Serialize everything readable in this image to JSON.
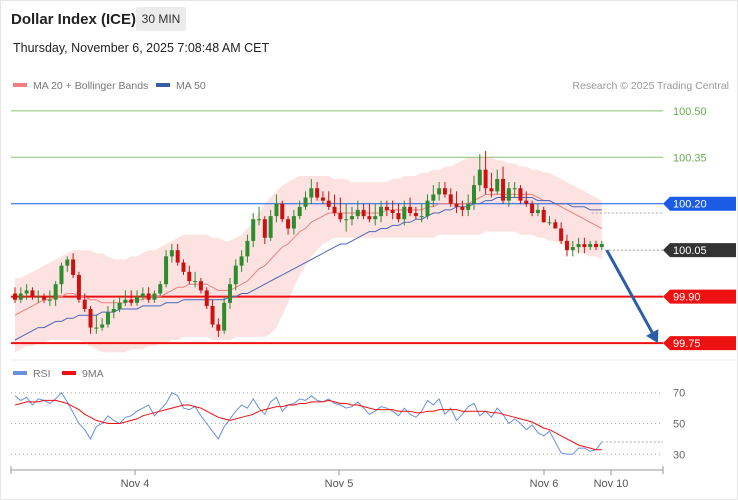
{
  "header": {
    "instrument": "Dollar Index (ICE)",
    "timeframe": "30 MIN",
    "datetime": "Thursday, November 6, 2025 7:08:48 AM CET"
  },
  "legend": {
    "ma20_label": "MA 20 + Bollinger Bands",
    "ma50_label": "MA 50",
    "credit": "Research © 2025 Trading Central",
    "rsi_label": "RSI",
    "rsi_ma_label": "9MA"
  },
  "colors": {
    "candle_up": "#2e8b2e",
    "candle_down": "#cc1111",
    "ma20": "#f08080",
    "ma50": "#4a68b8",
    "band_fill": "#fde2e2",
    "resistance_green": "#8ac46a",
    "blue_level": "#1a5ce6",
    "red_level": "#ee1111",
    "current_price_bg": "#333333",
    "arrow": "#2b5da8",
    "rsi": "#6a8fe0"
  },
  "chart_data": {
    "type": "candlestick",
    "price_axis": {
      "ylim": [
        99.705,
        100.535
      ],
      "labels": [
        "100.50",
        "100.35",
        "100.20",
        "100.05",
        "99.90",
        "99.75"
      ]
    },
    "x_axis": {
      "labels": [
        "Nov 4",
        "Nov 5",
        "Nov 6",
        "Nov 10"
      ]
    },
    "levels": [
      {
        "value": 100.5,
        "label": "100.50",
        "role": "resistance"
      },
      {
        "value": 100.35,
        "label": "100.35",
        "role": "resistance"
      },
      {
        "value": 100.2,
        "label": "100.20",
        "role": "pivot"
      },
      {
        "value": 99.9,
        "label": "99.90",
        "role": "support"
      },
      {
        "value": 99.75,
        "label": "99.75",
        "role": "support"
      }
    ],
    "current_price": {
      "value": 100.05,
      "label": "100.05"
    },
    "forecast_arrow": {
      "from": 100.05,
      "to": 99.75,
      "direction": "down"
    },
    "candles": {
      "open": [
        99.91,
        99.89,
        99.91,
        99.92,
        99.9,
        99.9,
        99.89,
        99.89,
        99.94,
        100.0,
        100.02,
        99.97,
        99.89,
        99.86,
        99.8,
        99.8,
        99.81,
        99.85,
        99.86,
        99.88,
        99.89,
        99.88,
        99.9,
        99.91,
        99.89,
        99.91,
        99.94,
        100.03,
        100.05,
        100.01,
        99.98,
        99.95,
        99.95,
        99.92,
        99.87,
        99.81,
        99.79,
        99.88,
        99.94,
        100.0,
        100.03,
        100.08,
        100.15,
        100.15,
        100.09,
        100.16,
        100.2,
        100.15,
        100.12,
        100.16,
        100.19,
        100.22,
        100.25,
        100.22,
        100.21,
        100.19,
        100.17,
        100.15,
        100.15,
        100.16,
        100.18,
        100.16,
        100.15,
        100.16,
        100.19,
        100.18,
        100.17,
        100.15,
        100.19,
        100.17,
        100.16,
        100.16,
        100.21,
        100.23,
        100.25,
        100.23,
        100.2,
        100.19,
        100.18,
        100.2,
        100.26,
        100.31,
        100.25,
        100.24,
        100.28,
        100.21,
        100.25,
        100.25,
        100.21,
        100.2,
        100.17,
        100.18,
        100.14,
        100.14,
        100.12,
        100.08,
        100.05,
        100.06,
        100.07,
        100.06,
        100.07,
        100.06
      ],
      "high": [
        99.93,
        99.93,
        99.94,
        99.93,
        99.92,
        99.91,
        99.92,
        99.95,
        100.01,
        100.03,
        100.04,
        99.98,
        99.91,
        99.87,
        99.84,
        99.83,
        99.87,
        99.89,
        99.9,
        99.92,
        99.92,
        99.92,
        99.93,
        99.93,
        99.92,
        99.95,
        100.05,
        100.07,
        100.07,
        100.02,
        100.0,
        99.98,
        99.96,
        99.93,
        99.89,
        99.83,
        99.9,
        99.96,
        100.02,
        100.05,
        100.1,
        100.17,
        100.19,
        100.16,
        100.18,
        100.23,
        100.21,
        100.16,
        100.18,
        100.21,
        100.24,
        100.28,
        100.27,
        100.24,
        100.24,
        100.23,
        100.22,
        100.2,
        100.19,
        100.21,
        100.2,
        100.2,
        100.2,
        100.21,
        100.21,
        100.21,
        100.2,
        100.21,
        100.22,
        100.19,
        100.2,
        100.23,
        100.26,
        100.27,
        100.27,
        100.25,
        100.24,
        100.21,
        100.23,
        100.29,
        100.36,
        100.37,
        100.3,
        100.31,
        100.32,
        100.27,
        100.27,
        100.26,
        100.24,
        100.21,
        100.2,
        100.19,
        100.16,
        100.15,
        100.14,
        100.1,
        100.08,
        100.09,
        100.09,
        100.08,
        100.08,
        100.08
      ],
      "low": [
        99.88,
        99.88,
        99.89,
        99.89,
        99.88,
        99.88,
        99.87,
        99.87,
        99.91,
        99.98,
        99.96,
        99.88,
        99.85,
        99.78,
        99.78,
        99.79,
        99.8,
        99.83,
        99.85,
        99.87,
        99.87,
        99.87,
        99.89,
        99.88,
        99.88,
        99.9,
        99.93,
        100.01,
        100.0,
        99.97,
        99.94,
        99.93,
        99.91,
        99.86,
        99.8,
        99.77,
        99.78,
        99.86,
        99.92,
        99.98,
        100.01,
        100.06,
        100.13,
        100.07,
        100.08,
        100.14,
        100.14,
        100.1,
        100.1,
        100.15,
        100.18,
        100.2,
        100.21,
        100.2,
        100.18,
        100.16,
        100.14,
        100.11,
        100.13,
        100.15,
        100.15,
        100.14,
        100.13,
        100.14,
        100.16,
        100.15,
        100.14,
        100.13,
        100.16,
        100.15,
        100.14,
        100.15,
        100.19,
        100.21,
        100.22,
        100.19,
        100.17,
        100.16,
        100.16,
        100.18,
        100.24,
        100.23,
        100.22,
        100.23,
        100.2,
        100.19,
        100.22,
        100.2,
        100.19,
        100.16,
        100.16,
        100.14,
        100.13,
        100.13,
        100.07,
        100.03,
        100.03,
        100.04,
        100.04,
        100.05,
        100.05,
        100.05
      ],
      "close": [
        99.89,
        99.91,
        99.92,
        99.9,
        99.9,
        99.89,
        99.89,
        99.94,
        100.0,
        100.02,
        99.97,
        99.89,
        99.86,
        99.8,
        99.8,
        99.81,
        99.85,
        99.86,
        99.88,
        99.89,
        99.88,
        99.9,
        99.91,
        99.89,
        99.91,
        99.94,
        100.03,
        100.05,
        100.01,
        99.98,
        99.95,
        99.95,
        99.92,
        99.87,
        99.81,
        99.79,
        99.88,
        99.94,
        100.0,
        100.03,
        100.08,
        100.15,
        100.15,
        100.09,
        100.16,
        100.2,
        100.15,
        100.12,
        100.16,
        100.19,
        100.22,
        100.25,
        100.22,
        100.21,
        100.19,
        100.17,
        100.15,
        100.15,
        100.16,
        100.18,
        100.16,
        100.15,
        100.16,
        100.19,
        100.18,
        100.17,
        100.15,
        100.19,
        100.17,
        100.16,
        100.16,
        100.21,
        100.23,
        100.25,
        100.23,
        100.2,
        100.19,
        100.18,
        100.2,
        100.26,
        100.31,
        100.25,
        100.24,
        100.28,
        100.21,
        100.25,
        100.25,
        100.21,
        100.2,
        100.17,
        100.18,
        100.14,
        100.14,
        100.12,
        100.08,
        100.05,
        100.06,
        100.07,
        100.06,
        100.07,
        100.06,
        100.07
      ]
    },
    "ma20": [
      99.84,
      99.85,
      99.86,
      99.87,
      99.88,
      99.89,
      99.89,
      99.9,
      99.9,
      99.91,
      99.91,
      99.9,
      99.9,
      99.89,
      99.89,
      99.88,
      99.88,
      99.88,
      99.88,
      99.88,
      99.89,
      99.89,
      99.89,
      99.9,
      99.9,
      99.9,
      99.91,
      99.92,
      99.93,
      99.93,
      99.94,
      99.94,
      99.94,
      99.94,
      99.93,
      99.92,
      99.92,
      99.92,
      99.93,
      99.94,
      99.95,
      99.97,
      99.99,
      100.0,
      100.02,
      100.04,
      100.06,
      100.07,
      100.09,
      100.11,
      100.12,
      100.14,
      100.15,
      100.16,
      100.17,
      100.17,
      100.17,
      100.17,
      100.17,
      100.17,
      100.17,
      100.17,
      100.17,
      100.17,
      100.18,
      100.18,
      100.18,
      100.18,
      100.18,
      100.18,
      100.18,
      100.19,
      100.19,
      100.2,
      100.2,
      100.2,
      100.2,
      100.2,
      100.2,
      100.21,
      100.22,
      100.23,
      100.23,
      100.23,
      100.23,
      100.23,
      100.23,
      100.23,
      100.23,
      100.23,
      100.22,
      100.21,
      100.21,
      100.2,
      100.19,
      100.18,
      100.17,
      100.16,
      100.15,
      100.14,
      100.13,
      100.12
    ],
    "ma50": [
      99.76,
      99.77,
      99.78,
      99.79,
      99.8,
      99.8,
      99.81,
      99.82,
      99.82,
      99.83,
      99.83,
      99.84,
      99.84,
      99.84,
      99.84,
      99.85,
      99.85,
      99.85,
      99.86,
      99.86,
      99.86,
      99.86,
      99.87,
      99.87,
      99.87,
      99.87,
      99.88,
      99.88,
      99.88,
      99.89,
      99.89,
      99.89,
      99.89,
      99.89,
      99.89,
      99.89,
      99.89,
      99.9,
      99.9,
      99.91,
      99.91,
      99.92,
      99.93,
      99.94,
      99.95,
      99.96,
      99.97,
      99.98,
      99.99,
      100.0,
      100.01,
      100.02,
      100.03,
      100.04,
      100.05,
      100.06,
      100.07,
      100.07,
      100.08,
      100.09,
      100.1,
      100.11,
      100.11,
      100.12,
      100.12,
      100.13,
      100.13,
      100.14,
      100.14,
      100.15,
      100.15,
      100.16,
      100.17,
      100.17,
      100.18,
      100.18,
      100.19,
      100.19,
      100.19,
      100.2,
      100.2,
      100.21,
      100.21,
      100.22,
      100.22,
      100.22,
      100.22,
      100.22,
      100.22,
      100.22,
      100.21,
      100.21,
      100.21,
      100.2,
      100.2,
      100.2,
      100.19,
      100.19,
      100.19,
      100.18,
      100.18,
      100.18
    ],
    "bb_upper": [
      99.96,
      99.96,
      99.97,
      99.98,
      99.99,
      100.0,
      100.01,
      100.02,
      100.03,
      100.04,
      100.05,
      100.05,
      100.05,
      100.05,
      100.04,
      100.04,
      100.03,
      100.02,
      100.02,
      100.02,
      100.03,
      100.03,
      100.04,
      100.05,
      100.05,
      100.06,
      100.07,
      100.08,
      100.09,
      100.1,
      100.1,
      100.1,
      100.1,
      100.1,
      100.09,
      100.09,
      100.08,
      100.08,
      100.09,
      100.1,
      100.12,
      100.14,
      100.17,
      100.2,
      100.22,
      100.24,
      100.26,
      100.27,
      100.28,
      100.29,
      100.29,
      100.29,
      100.29,
      100.29,
      100.29,
      100.28,
      100.28,
      100.28,
      100.27,
      100.27,
      100.27,
      100.27,
      100.27,
      100.27,
      100.27,
      100.28,
      100.28,
      100.29,
      100.29,
      100.29,
      100.3,
      100.3,
      100.31,
      100.31,
      100.32,
      100.32,
      100.33,
      100.34,
      100.35,
      100.35,
      100.35,
      100.35,
      100.35,
      100.34,
      100.34,
      100.33,
      100.33,
      100.32,
      100.32,
      100.31,
      100.31,
      100.3,
      100.3,
      100.29,
      100.28,
      100.27,
      100.26,
      100.25,
      100.24,
      100.23,
      100.22,
      100.21
    ],
    "bb_lower": [
      99.72,
      99.73,
      99.74,
      99.74,
      99.75,
      99.75,
      99.76,
      99.76,
      99.76,
      99.76,
      99.76,
      99.76,
      99.75,
      99.74,
      99.73,
      99.72,
      99.72,
      99.72,
      99.72,
      99.72,
      99.73,
      99.73,
      99.73,
      99.74,
      99.74,
      99.75,
      99.75,
      99.76,
      99.76,
      99.77,
      99.77,
      99.77,
      99.77,
      99.77,
      99.76,
      99.76,
      99.76,
      99.76,
      99.77,
      99.77,
      99.77,
      99.77,
      99.77,
      99.77,
      99.78,
      99.8,
      99.84,
      99.88,
      99.93,
      99.97,
      100.0,
      100.03,
      100.05,
      100.07,
      100.08,
      100.09,
      100.09,
      100.09,
      100.09,
      100.09,
      100.09,
      100.09,
      100.09,
      100.09,
      100.09,
      100.09,
      100.09,
      100.09,
      100.09,
      100.09,
      100.09,
      100.09,
      100.09,
      100.1,
      100.1,
      100.1,
      100.1,
      100.1,
      100.1,
      100.1,
      100.1,
      100.11,
      100.11,
      100.11,
      100.11,
      100.11,
      100.11,
      100.1,
      100.1,
      100.1,
      100.09,
      100.09,
      100.08,
      100.08,
      100.07,
      100.06,
      100.05,
      100.04,
      100.04,
      100.03,
      100.03,
      100.02
    ],
    "rsi": {
      "ylim": [
        25,
        75
      ],
      "ticks": [
        70,
        50,
        30
      ],
      "rsi": [
        68,
        65,
        67,
        62,
        66,
        65,
        63,
        66,
        70,
        64,
        57,
        50,
        46,
        40,
        48,
        50,
        55,
        52,
        50,
        54,
        55,
        58,
        60,
        62,
        55,
        59,
        63,
        70,
        68,
        60,
        59,
        61,
        55,
        50,
        45,
        40,
        48,
        53,
        58,
        62,
        60,
        66,
        60,
        56,
        64,
        67,
        58,
        62,
        63,
        66,
        65,
        68,
        65,
        64,
        66,
        63,
        62,
        60,
        61,
        64,
        60,
        56,
        58,
        61,
        60,
        58,
        55,
        60,
        56,
        54,
        58,
        65,
        62,
        66,
        56,
        60,
        52,
        56,
        61,
        63,
        55,
        58,
        54,
        60,
        56,
        50,
        53,
        50,
        46,
        49,
        44,
        42,
        45,
        38,
        31,
        30,
        30,
        34,
        34,
        32,
        33,
        38
      ],
      "ma9": [
        62,
        63,
        64,
        64,
        64,
        65,
        65,
        65,
        64,
        63,
        61,
        59,
        56,
        54,
        52,
        51,
        50,
        50,
        50,
        51,
        52,
        53,
        55,
        56,
        57,
        58,
        59,
        60,
        61,
        62,
        62,
        61,
        60,
        58,
        56,
        54,
        53,
        52,
        53,
        54,
        55,
        56,
        58,
        59,
        60,
        61,
        61,
        62,
        62,
        63,
        63,
        64,
        64,
        64,
        65,
        64,
        63,
        63,
        62,
        62,
        61,
        60,
        59,
        59,
        59,
        59,
        58,
        58,
        58,
        57,
        57,
        58,
        58,
        59,
        59,
        59,
        59,
        58,
        58,
        58,
        58,
        58,
        57,
        57,
        56,
        55,
        54,
        53,
        52,
        51,
        49,
        47,
        46,
        44,
        42,
        40,
        38,
        36,
        35,
        34,
        33,
        33
      ]
    }
  }
}
